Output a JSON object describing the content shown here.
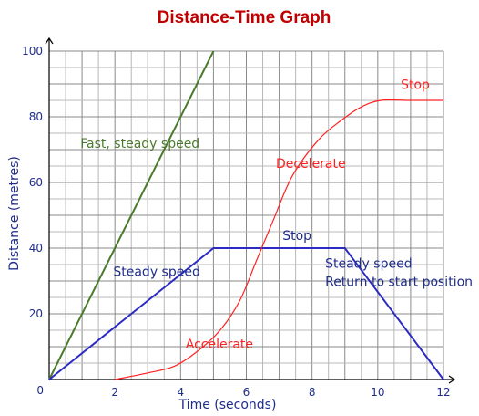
{
  "chart_data": {
    "type": "line",
    "title": "Distance-Time Graph",
    "xlabel": "Time (seconds)",
    "ylabel": "Distance (metres)",
    "xlim": [
      0,
      12
    ],
    "ylim": [
      0,
      100
    ],
    "x_ticks": [
      2,
      4,
      6,
      8,
      10,
      12
    ],
    "y_ticks": [
      20,
      40,
      60,
      80,
      100
    ],
    "origin_label": "0",
    "grid": true,
    "series": [
      {
        "color": "#4a7a2c",
        "style": "straight",
        "points": [
          [
            0,
            0
          ],
          [
            5,
            100
          ]
        ]
      },
      {
        "color": "#2b2bc4",
        "style": "straight",
        "points": [
          [
            0,
            0
          ],
          [
            5,
            40
          ],
          [
            9,
            40
          ],
          [
            12,
            0
          ]
        ]
      },
      {
        "color": "#ff2020",
        "style": "smooth",
        "points": [
          [
            2,
            0
          ],
          [
            3,
            2
          ],
          [
            3.8,
            4
          ],
          [
            4.5,
            8.5
          ],
          [
            5.2,
            15
          ],
          [
            5.8,
            24
          ],
          [
            6.3,
            36
          ],
          [
            6.8,
            48
          ],
          [
            7.4,
            62
          ],
          [
            8.2,
            73
          ],
          [
            8.9,
            79
          ],
          [
            9.5,
            83
          ],
          [
            10.1,
            85
          ],
          [
            11,
            85
          ],
          [
            12,
            85
          ]
        ]
      }
    ],
    "annotations": [
      {
        "text": "Fast, steady speed",
        "x": 0.95,
        "y": 70.5,
        "color": "#4a7a2c"
      },
      {
        "text": "Steady speed",
        "x": 1.95,
        "y": 31.5,
        "color": "#1f2d8a"
      },
      {
        "text": "Stop",
        "x": 7.1,
        "y": 42.5,
        "color": "#1f2d8a"
      },
      {
        "text": "Steady speed",
        "x": 8.4,
        "y": 34,
        "color": "#1f2d8a"
      },
      {
        "text": "Return to start position",
        "x": 8.4,
        "y": 28.5,
        "color": "#1f2d8a"
      },
      {
        "text": "Decelerate",
        "x": 6.9,
        "y": 64.5,
        "color": "#ff2020"
      },
      {
        "text": "Accelerate",
        "x": 4.15,
        "y": 9.5,
        "color": "#ff2020"
      },
      {
        "text": "Stop",
        "x": 10.7,
        "y": 88.5,
        "color": "#ff2020"
      }
    ]
  }
}
